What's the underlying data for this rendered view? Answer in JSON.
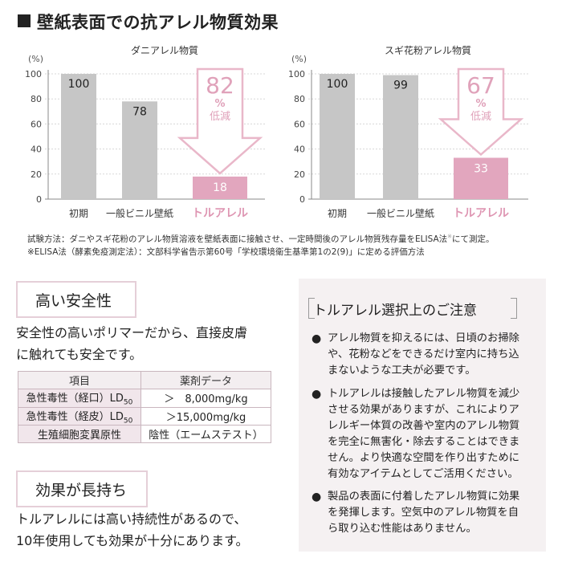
{
  "header": {
    "title": "壁紙表面での抗アレル物質効果"
  },
  "chart_data": [
    {
      "type": "bar",
      "title": "ダニアレル物質",
      "ylabel": "(%)",
      "ylim": [
        0,
        100
      ],
      "yticks": [
        "0",
        "20",
        "40",
        "60",
        "80",
        "100"
      ],
      "categories": [
        "初期",
        "一般ビニル壁紙",
        "トルアレル"
      ],
      "values": [
        100,
        78,
        18
      ],
      "value_labels": [
        "100",
        "78",
        "18"
      ],
      "bar_colors": [
        "#c6c6c6",
        "#c6c6c6",
        "#e2a6be"
      ],
      "reduction": {
        "value": "82",
        "unit": "%",
        "label": "低減"
      }
    },
    {
      "type": "bar",
      "title": "スギ花粉アレル物質",
      "ylabel": "(%)",
      "ylim": [
        0,
        100
      ],
      "yticks": [
        "0",
        "20",
        "40",
        "60",
        "80",
        "100"
      ],
      "categories": [
        "初期",
        "一般ビニル壁紙",
        "トルアレル"
      ],
      "values": [
        100,
        99,
        33
      ],
      "value_labels": [
        "100",
        "99",
        "33"
      ],
      "bar_colors": [
        "#c6c6c6",
        "#c6c6c6",
        "#e2a6be"
      ],
      "reduction": {
        "value": "67",
        "unit": "%",
        "label": "低減"
      }
    }
  ],
  "notes": {
    "method": "試験方法：ダニやスギ花粉のアレル物質溶液を壁紙表面に接触させ、一定時間後のアレル物質残存量をELISA法",
    "method_mark": "※",
    "method_end": "にて測定。",
    "elisa": "※ELISA法（酵素免疫測定法）：文部科学省告示第60号「学校環境衛生基準第1の2(9)」に定める評価方法"
  },
  "safety": {
    "title": "高い安全性",
    "body_line1": "安全性の高いポリマーだから、直接皮膚",
    "body_line2": "に触れても安全です。",
    "table": {
      "headers": [
        "項目",
        "薬剤データ"
      ],
      "rows": [
        {
          "label": "急性毒性（経口）LD",
          "sub": "50",
          "value": "＞　8,000mg/kg"
        },
        {
          "label": "急性毒性（経皮）LD",
          "sub": "50",
          "value": "＞15,000mg/kg"
        },
        {
          "label": "生殖細胞変異原性",
          "sub": "",
          "value": "陰性（エームステスト）"
        }
      ]
    }
  },
  "longlasting": {
    "title": "効果が長持ち",
    "body_line1": "トルアレルには高い持続性があるので、",
    "body_line2": "10年使用しても効果が十分にあります。"
  },
  "caution": {
    "title": "トルアレル選択上のご注意",
    "bullet": "●",
    "items": [
      [
        "アレル物質を抑えるには、日頃のお掃除",
        "や、花粉などをできるだけ室内に持ち込",
        "まないような工夫が必要です。"
      ],
      [
        "トルアレルは接触したアレル物質を減少",
        "させる効果がありますが、これによりア",
        "レルギー体質の改善や室内のアレル物質",
        "を完全に無害化・除去することはできま",
        "せん。より快適な空間を作り出すために",
        "有効なアイテムとしてご活用ください。"
      ],
      [
        "製品の表面に付着したアレル物質に効果",
        "を発揮します。空気中のアレル物質を自",
        "ら取り込む性能はありません。"
      ]
    ]
  }
}
